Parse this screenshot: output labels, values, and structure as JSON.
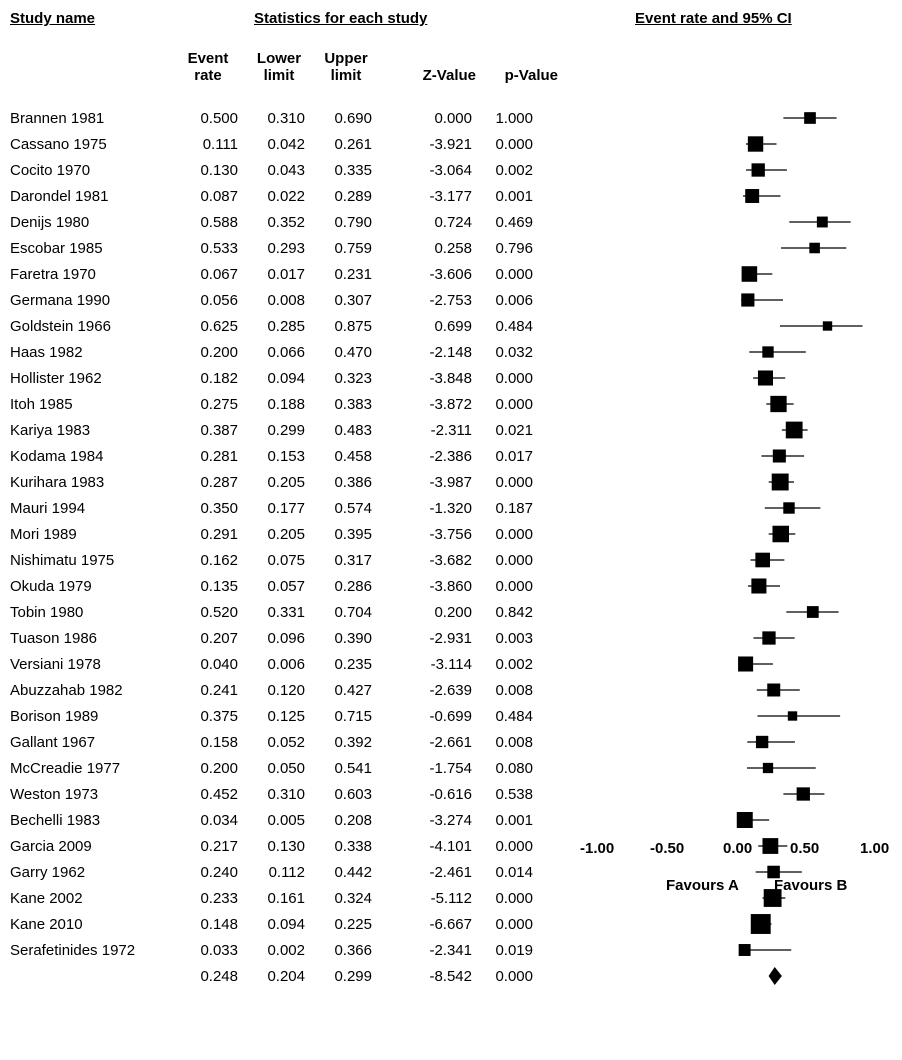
{
  "headers": {
    "study_name": "Study name",
    "statistics": "Statistics for each study",
    "event_rate_ci": "Event rate and 95% CI"
  },
  "columns": {
    "event_rate": [
      "Event",
      "rate"
    ],
    "lower_limit": [
      "Lower",
      "limit"
    ],
    "upper_limit": [
      "Upper",
      "limit"
    ],
    "z_value": "Z-Value",
    "p_value": "p-Value"
  },
  "chart_data": {
    "type": "forest",
    "xlim": [
      -1.0,
      1.0
    ],
    "x_ticks": [
      "-1.00",
      "-0.50",
      "0.00",
      "0.50",
      "1.00"
    ],
    "favours_left": "Favours A",
    "favours_right": "Favours B",
    "studies": [
      {
        "name": "Brannen 1981",
        "rate": "0.500",
        "lower": "0.310",
        "upper": "0.690",
        "z": "0.000",
        "p": "1.000"
      },
      {
        "name": "Cassano 1975",
        "rate": "0.111",
        "lower": "0.042",
        "upper": "0.261",
        "z": "-3.921",
        "p": "0.000"
      },
      {
        "name": "Cocito 1970",
        "rate": "0.130",
        "lower": "0.043",
        "upper": "0.335",
        "z": "-3.064",
        "p": "0.002"
      },
      {
        "name": "Darondel 1981",
        "rate": "0.087",
        "lower": "0.022",
        "upper": "0.289",
        "z": "-3.177",
        "p": "0.001"
      },
      {
        "name": "Denijs 1980",
        "rate": "0.588",
        "lower": "0.352",
        "upper": "0.790",
        "z": "0.724",
        "p": "0.469"
      },
      {
        "name": "Escobar 1985",
        "rate": "0.533",
        "lower": "0.293",
        "upper": "0.759",
        "z": "0.258",
        "p": "0.796"
      },
      {
        "name": "Faretra 1970",
        "rate": "0.067",
        "lower": "0.017",
        "upper": "0.231",
        "z": "-3.606",
        "p": "0.000"
      },
      {
        "name": "Germana 1990",
        "rate": "0.056",
        "lower": "0.008",
        "upper": "0.307",
        "z": "-2.753",
        "p": "0.006"
      },
      {
        "name": "Goldstein 1966",
        "rate": "0.625",
        "lower": "0.285",
        "upper": "0.875",
        "z": "0.699",
        "p": "0.484"
      },
      {
        "name": "Haas 1982",
        "rate": "0.200",
        "lower": "0.066",
        "upper": "0.470",
        "z": "-2.148",
        "p": "0.032"
      },
      {
        "name": "Hollister 1962",
        "rate": "0.182",
        "lower": "0.094",
        "upper": "0.323",
        "z": "-3.848",
        "p": "0.000"
      },
      {
        "name": "Itoh 1985",
        "rate": "0.275",
        "lower": "0.188",
        "upper": "0.383",
        "z": "-3.872",
        "p": "0.000"
      },
      {
        "name": "Kariya 1983",
        "rate": "0.387",
        "lower": "0.299",
        "upper": "0.483",
        "z": "-2.311",
        "p": "0.021"
      },
      {
        "name": "Kodama 1984",
        "rate": "0.281",
        "lower": "0.153",
        "upper": "0.458",
        "z": "-2.386",
        "p": "0.017"
      },
      {
        "name": "Kurihara 1983",
        "rate": "0.287",
        "lower": "0.205",
        "upper": "0.386",
        "z": "-3.987",
        "p": "0.000"
      },
      {
        "name": "Mauri 1994",
        "rate": "0.350",
        "lower": "0.177",
        "upper": "0.574",
        "z": "-1.320",
        "p": "0.187"
      },
      {
        "name": "Mori 1989",
        "rate": "0.291",
        "lower": "0.205",
        "upper": "0.395",
        "z": "-3.756",
        "p": "0.000"
      },
      {
        "name": "Nishimatu 1975",
        "rate": "0.162",
        "lower": "0.075",
        "upper": "0.317",
        "z": "-3.682",
        "p": "0.000"
      },
      {
        "name": "Okuda 1979",
        "rate": "0.135",
        "lower": "0.057",
        "upper": "0.286",
        "z": "-3.860",
        "p": "0.000"
      },
      {
        "name": "Tobin 1980",
        "rate": "0.520",
        "lower": "0.331",
        "upper": "0.704",
        "z": "0.200",
        "p": "0.842"
      },
      {
        "name": "Tuason 1986",
        "rate": "0.207",
        "lower": "0.096",
        "upper": "0.390",
        "z": "-2.931",
        "p": "0.003"
      },
      {
        "name": "Versiani 1978",
        "rate": "0.040",
        "lower": "0.006",
        "upper": "0.235",
        "z": "-3.114",
        "p": "0.002"
      },
      {
        "name": "Abuzzahab 1982",
        "rate": "0.241",
        "lower": "0.120",
        "upper": "0.427",
        "z": "-2.639",
        "p": "0.008"
      },
      {
        "name": "Borison 1989",
        "rate": "0.375",
        "lower": "0.125",
        "upper": "0.715",
        "z": "-0.699",
        "p": "0.484"
      },
      {
        "name": "Gallant 1967",
        "rate": "0.158",
        "lower": "0.052",
        "upper": "0.392",
        "z": "-2.661",
        "p": "0.008"
      },
      {
        "name": "McCreadie 1977",
        "rate": "0.200",
        "lower": "0.050",
        "upper": "0.541",
        "z": "-1.754",
        "p": "0.080"
      },
      {
        "name": "Weston 1973",
        "rate": "0.452",
        "lower": "0.310",
        "upper": "0.603",
        "z": "-0.616",
        "p": "0.538"
      },
      {
        "name": "Bechelli 1983",
        "rate": "0.034",
        "lower": "0.005",
        "upper": "0.208",
        "z": "-3.274",
        "p": "0.001"
      },
      {
        "name": "Garcia 2009",
        "rate": "0.217",
        "lower": "0.130",
        "upper": "0.338",
        "z": "-4.101",
        "p": "0.000"
      },
      {
        "name": "Garry 1962",
        "rate": "0.240",
        "lower": "0.112",
        "upper": "0.442",
        "z": "-2.461",
        "p": "0.014"
      },
      {
        "name": "Kane 2002",
        "rate": "0.233",
        "lower": "0.161",
        "upper": "0.324",
        "z": "-5.112",
        "p": "0.000"
      },
      {
        "name": "Kane 2010",
        "rate": "0.148",
        "lower": "0.094",
        "upper": "0.225",
        "z": "-6.667",
        "p": "0.000"
      },
      {
        "name": "Serafetinides 1972",
        "rate": "0.033",
        "lower": "0.002",
        "upper": "0.366",
        "z": "-2.341",
        "p": "0.019"
      }
    ],
    "summary": {
      "name": "",
      "rate": "0.248",
      "lower": "0.204",
      "upper": "0.299",
      "z": "-8.542",
      "p": "0.000"
    }
  }
}
